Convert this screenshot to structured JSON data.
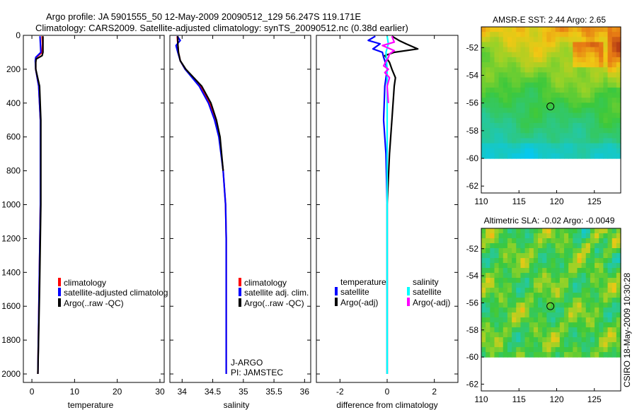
{
  "header": {
    "line1": "Argo profile: JA 5901555_50 12-May-2009 20090512_129 56.247S 119.171E",
    "line2": "Climatology: CARS2009. Satellite-adjusted climatology: synTS_20090512.nc (0.38d earlier)"
  },
  "side_stamp": "CSIRO 18-May-2009 10:30:28",
  "colors": {
    "red": "#ff0000",
    "blue": "#0000ff",
    "black": "#000000",
    "cyan": "#00ffff",
    "magenta": "#ff00ff"
  },
  "chart_data": [
    {
      "type": "line",
      "id": "temperature",
      "xlabel": "temperature",
      "xlim": [
        -2,
        31
      ],
      "xticks": [
        0,
        10,
        20,
        30
      ],
      "xtick_labels": [
        "0",
        "10",
        "20",
        "30"
      ],
      "ylim": [
        2050,
        0
      ],
      "yticks": [
        0,
        200,
        400,
        600,
        800,
        1000,
        1200,
        1400,
        1600,
        1800,
        2000
      ],
      "ytick_labels": [
        "0",
        "200",
        "400",
        "600",
        "800",
        "1000",
        "1200",
        "1400",
        "1600",
        "1800",
        "2000"
      ],
      "legend": [
        "climatology",
        "satellite-adjusted climatolog",
        "Argo(..raw -QC)"
      ],
      "series": [
        {
          "name": "climatology",
          "color": "red",
          "depth": [
            5,
            50,
            100,
            130,
            150,
            200,
            300,
            500,
            1000,
            1500,
            2000
          ],
          "values": [
            2.4,
            2.5,
            2.4,
            1.0,
            0.9,
            0.9,
            1.6,
            2.0,
            2.0,
            1.7,
            1.4
          ]
        },
        {
          "name": "satellite-adjusted climatolog",
          "color": "blue",
          "depth": [
            5,
            50,
            100,
            130,
            150,
            200,
            300,
            500,
            1000,
            1500,
            2000
          ],
          "values": [
            1.9,
            2.0,
            2.1,
            0.9,
            0.8,
            0.9,
            1.6,
            2.0,
            2.0,
            1.7,
            1.4
          ]
        },
        {
          "name": "Argo(..raw -QC)",
          "color": "black",
          "depth": [
            5,
            50,
            100,
            120,
            140,
            160,
            200,
            300,
            500,
            1000,
            1500,
            2000
          ],
          "values": [
            2.6,
            2.6,
            2.6,
            2.4,
            1.0,
            0.9,
            0.9,
            1.8,
            2.1,
            2.1,
            1.8,
            1.4
          ]
        }
      ]
    },
    {
      "type": "line",
      "id": "salinity",
      "xlabel": "salinity",
      "xlim": [
        33.8,
        36.1
      ],
      "xticks": [
        34,
        34.5,
        35,
        35.5,
        36
      ],
      "xtick_labels": [
        "34",
        "34.5",
        "35",
        "35.5",
        "36"
      ],
      "ylim": [
        2050,
        0
      ],
      "legend": [
        "climatology",
        "satellite adj. clim.",
        "Argo(..raw -QC)"
      ],
      "annotations": [
        "J-ARGO",
        "PI: JAMSTEC"
      ],
      "series": [
        {
          "name": "climatology",
          "color": "red",
          "depth": [
            5,
            50,
            100,
            150,
            200,
            300,
            400,
            500,
            600,
            800,
            1000,
            1200,
            1500,
            2000
          ],
          "values": [
            33.92,
            33.93,
            33.94,
            33.97,
            34.05,
            34.3,
            34.45,
            34.55,
            34.61,
            34.67,
            34.71,
            34.72,
            34.72,
            34.72
          ]
        },
        {
          "name": "satellite adj. clim.",
          "color": "blue",
          "depth": [
            5,
            30,
            60,
            100,
            150,
            200,
            300,
            400,
            500,
            600,
            800,
            1000,
            1200,
            1500,
            2000
          ],
          "values": [
            33.92,
            33.97,
            33.9,
            33.93,
            33.97,
            34.05,
            34.28,
            34.43,
            34.53,
            34.6,
            34.67,
            34.71,
            34.72,
            34.72,
            34.72
          ]
        },
        {
          "name": "Argo(..raw -QC)",
          "color": "black",
          "depth": [
            5,
            50,
            100,
            150,
            200,
            300,
            400,
            500,
            600,
            800
          ],
          "values": [
            33.93,
            33.93,
            33.94,
            33.97,
            34.06,
            34.32,
            34.47,
            34.56,
            34.62,
            34.67
          ]
        }
      ]
    },
    {
      "type": "line",
      "id": "difference",
      "xlabel": "difference from climatology",
      "xlim": [
        -3,
        3
      ],
      "xticks": [
        -2,
        0,
        2
      ],
      "xtick_labels": [
        "-2",
        "0",
        "2"
      ],
      "ylim": [
        2050,
        0
      ],
      "legend_temperature_title": "temperature",
      "legend_salinity_title": "salinity",
      "legend_temperature": [
        "satellite",
        "Argo(-adj)"
      ],
      "legend_salinity": [
        "satellite",
        "Argo(-adj)"
      ],
      "series": [
        {
          "name": "temperature satellite",
          "color": "blue",
          "depth": [
            5,
            30,
            50,
            80,
            100,
            130,
            150,
            200,
            300,
            500,
            700,
            1000,
            2000
          ],
          "values": [
            -0.5,
            -0.8,
            -0.3,
            -0.6,
            -0.2,
            -0.15,
            -0.1,
            0.0,
            -0.1,
            -0.15,
            -0.05,
            0.0,
            0.0
          ]
        },
        {
          "name": "temperature Argo(-adj)",
          "color": "black",
          "depth": [
            5,
            30,
            50,
            80,
            100,
            120,
            140,
            160,
            200,
            250,
            300,
            500,
            700,
            1000,
            2000
          ],
          "values": [
            0.2,
            0.5,
            0.8,
            1.3,
            0.3,
            -0.1,
            0.0,
            0.1,
            0.2,
            0.35,
            0.3,
            0.2,
            0.1,
            0.0,
            0.0
          ]
        },
        {
          "name": "salinity satellite",
          "color": "cyan",
          "depth": [
            5,
            50,
            100,
            200,
            300,
            500,
            1000,
            2000
          ],
          "values": [
            0.0,
            0.05,
            -0.05,
            0.0,
            0.0,
            0.0,
            0.0,
            0.0
          ]
        },
        {
          "name": "salinity Argo(-adj)",
          "color": "magenta",
          "depth": [
            5,
            40,
            60,
            90,
            110,
            130,
            180,
            200,
            220,
            250,
            300,
            400
          ],
          "values": [
            0.2,
            0.3,
            -0.2,
            0.3,
            0.1,
            0.05,
            -0.15,
            0.05,
            -0.1,
            0.1,
            0.0,
            0.05
          ]
        }
      ]
    },
    {
      "type": "heatmap",
      "id": "sst_map",
      "title": "AMSR-E SST: 2.44 Argo: 2.65",
      "xlim": [
        110,
        128.5
      ],
      "ylim": [
        -62.5,
        -50.5
      ],
      "xticks": [
        110,
        115,
        120,
        125
      ],
      "xtick_labels": [
        "110",
        "115",
        "120",
        "125"
      ],
      "yticks": [
        -52,
        -54,
        -56,
        -58,
        -60,
        -62
      ],
      "ytick_labels": [
        "-52",
        "-54",
        "-56",
        "-58",
        "-60",
        "-62"
      ],
      "data_extent_south": -60,
      "marker": {
        "lon": 119.171,
        "lat": -56.247
      }
    },
    {
      "type": "heatmap",
      "id": "sla_map",
      "title": "Altimetric SLA: -0.02 Argo: -0.0049",
      "xlim": [
        110,
        128.5
      ],
      "ylim": [
        -62.5,
        -50.5
      ],
      "xticks": [
        110,
        115,
        120,
        125
      ],
      "xtick_labels": [
        "110",
        "115",
        "120",
        "125"
      ],
      "yticks": [
        -52,
        -54,
        -56,
        -58,
        -60,
        -62
      ],
      "ytick_labels": [
        "-52",
        "-54",
        "-56",
        "-58",
        "-60",
        "-62"
      ],
      "data_extent_south": -60,
      "marker": {
        "lon": 119.171,
        "lat": -56.247
      }
    }
  ]
}
